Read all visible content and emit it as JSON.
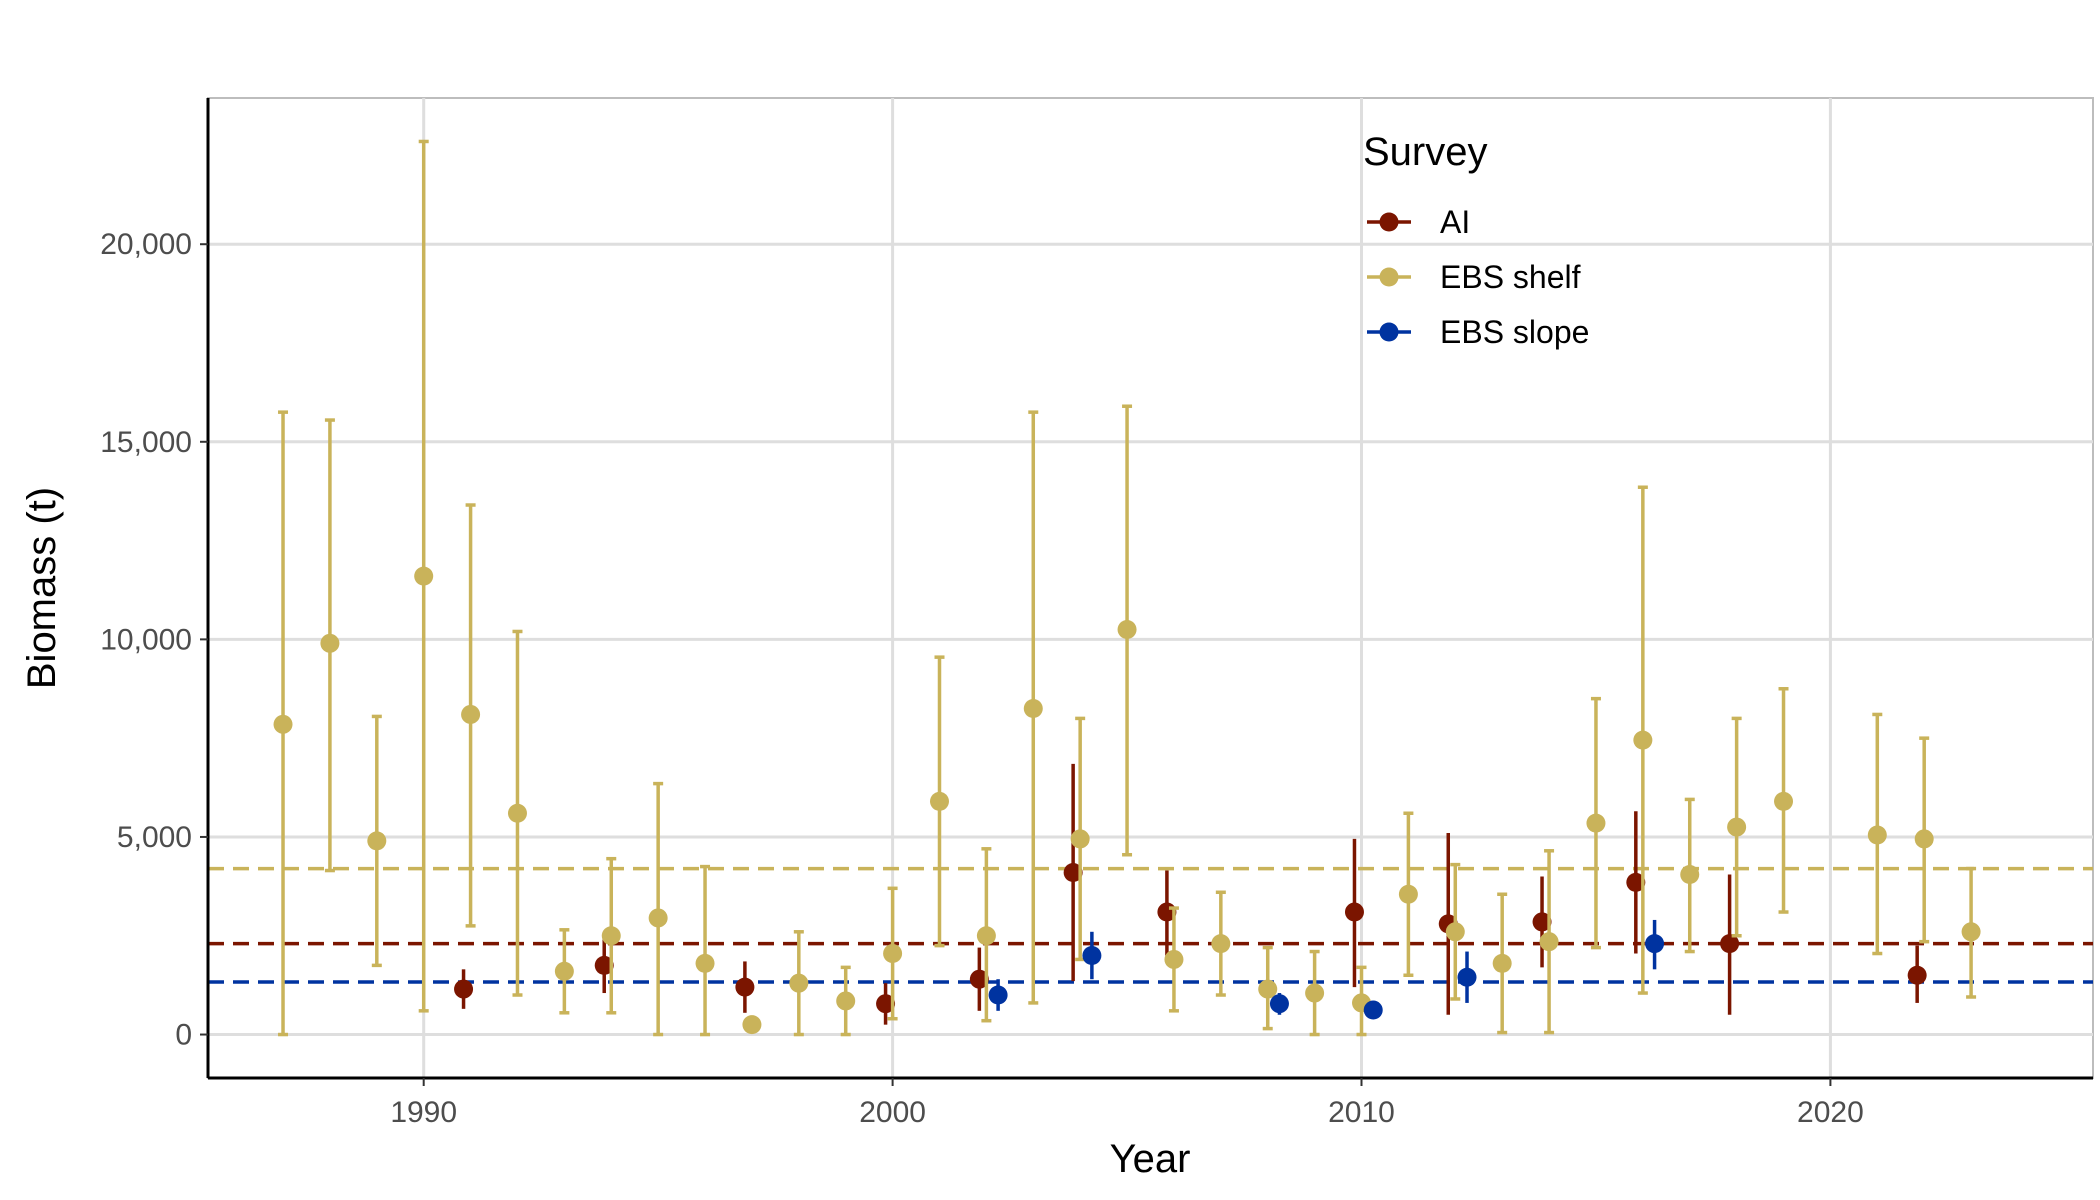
{
  "chart_data": {
    "type": "scatter",
    "title": "",
    "xlabel": "Year",
    "ylabel": "Biomass (t)",
    "xlim": [
      1985.4,
      2025.6
    ],
    "ylim": [
      -1100,
      23700
    ],
    "x_ticks": [
      1990,
      2000,
      2010,
      2020
    ],
    "x_tick_labels": [
      "1990",
      "2000",
      "2010",
      "2020"
    ],
    "y_ticks": [
      0,
      5000,
      10000,
      15000,
      20000
    ],
    "y_tick_labels": [
      "0",
      "5,000",
      "10,000",
      "15,000",
      "20,000"
    ],
    "grid": true,
    "legend": {
      "title": "Survey",
      "position": "top-right"
    },
    "reference_lines": [
      {
        "series": "EBS shelf",
        "y": 4200,
        "style": "dashed"
      },
      {
        "series": "AI",
        "y": 2300,
        "style": "dashed"
      },
      {
        "series": "EBS slope",
        "y": 1330,
        "style": "dashed"
      }
    ],
    "series": [
      {
        "name": "AI",
        "color": "#7B1500",
        "points": [
          {
            "x": 1991,
            "y": 1150,
            "lo": 650,
            "hi": 1650
          },
          {
            "x": 1994,
            "y": 1750,
            "lo": 1050,
            "hi": 2450
          },
          {
            "x": 1997,
            "y": 1200,
            "lo": 550,
            "hi": 1850
          },
          {
            "x": 2000,
            "y": 780,
            "lo": 250,
            "hi": 1300
          },
          {
            "x": 2002,
            "y": 1400,
            "lo": 600,
            "hi": 2200
          },
          {
            "x": 2004,
            "y": 4100,
            "lo": 1350,
            "hi": 6850
          },
          {
            "x": 2006,
            "y": 3100,
            "lo": 2000,
            "hi": 4150
          },
          {
            "x": 2010,
            "y": 3100,
            "lo": 1200,
            "hi": 4950
          },
          {
            "x": 2012,
            "y": 2800,
            "lo": 500,
            "hi": 5100
          },
          {
            "x": 2014,
            "y": 2850,
            "lo": 1700,
            "hi": 4000
          },
          {
            "x": 2016,
            "y": 3850,
            "lo": 2050,
            "hi": 5650
          },
          {
            "x": 2018,
            "y": 2300,
            "lo": 500,
            "hi": 4050
          },
          {
            "x": 2022,
            "y": 1500,
            "lo": 800,
            "hi": 2250
          }
        ]
      },
      {
        "name": "EBS shelf",
        "color": "#C9B35A",
        "points": [
          {
            "x": 1987,
            "y": 7850,
            "lo": 0,
            "hi": 15750
          },
          {
            "x": 1988,
            "y": 9900,
            "lo": 4150,
            "hi": 15550
          },
          {
            "x": 1989,
            "y": 4900,
            "lo": 1750,
            "hi": 8050
          },
          {
            "x": 1990,
            "y": 11600,
            "lo": 600,
            "hi": 22600
          },
          {
            "x": 1991,
            "y": 8100,
            "lo": 2750,
            "hi": 13400
          },
          {
            "x": 1992,
            "y": 5600,
            "lo": 1000,
            "hi": 10200
          },
          {
            "x": 1993,
            "y": 1600,
            "lo": 550,
            "hi": 2650
          },
          {
            "x": 1994,
            "y": 2500,
            "lo": 550,
            "hi": 4450
          },
          {
            "x": 1995,
            "y": 2950,
            "lo": 0,
            "hi": 6350
          },
          {
            "x": 1996,
            "y": 1800,
            "lo": 0,
            "hi": 4250
          },
          {
            "x": 1997,
            "y": 250,
            "lo": 250,
            "hi": 250
          },
          {
            "x": 1998,
            "y": 1300,
            "lo": 0,
            "hi": 2600
          },
          {
            "x": 1999,
            "y": 850,
            "lo": 0,
            "hi": 1700
          },
          {
            "x": 2000,
            "y": 2050,
            "lo": 400,
            "hi": 3700
          },
          {
            "x": 2001,
            "y": 5900,
            "lo": 2250,
            "hi": 9550
          },
          {
            "x": 2002,
            "y": 2500,
            "lo": 350,
            "hi": 4700
          },
          {
            "x": 2003,
            "y": 8250,
            "lo": 800,
            "hi": 15750
          },
          {
            "x": 2004,
            "y": 4950,
            "lo": 1900,
            "hi": 8000
          },
          {
            "x": 2005,
            "y": 10250,
            "lo": 4550,
            "hi": 15900
          },
          {
            "x": 2006,
            "y": 1900,
            "lo": 600,
            "hi": 3200
          },
          {
            "x": 2007,
            "y": 2300,
            "lo": 1000,
            "hi": 3600
          },
          {
            "x": 2008,
            "y": 1150,
            "lo": 150,
            "hi": 2200
          },
          {
            "x": 2009,
            "y": 1050,
            "lo": 0,
            "hi": 2100
          },
          {
            "x": 2010,
            "y": 800,
            "lo": 0,
            "hi": 1700
          },
          {
            "x": 2011,
            "y": 3550,
            "lo": 1500,
            "hi": 5600
          },
          {
            "x": 2012,
            "y": 2600,
            "lo": 900,
            "hi": 4300
          },
          {
            "x": 2013,
            "y": 1800,
            "lo": 50,
            "hi": 3550
          },
          {
            "x": 2014,
            "y": 2350,
            "lo": 50,
            "hi": 4650
          },
          {
            "x": 2015,
            "y": 5350,
            "lo": 2200,
            "hi": 8500
          },
          {
            "x": 2016,
            "y": 7450,
            "lo": 1050,
            "hi": 13850
          },
          {
            "x": 2017,
            "y": 4050,
            "lo": 2100,
            "hi": 5950
          },
          {
            "x": 2018,
            "y": 5250,
            "lo": 2500,
            "hi": 8000
          },
          {
            "x": 2019,
            "y": 5900,
            "lo": 3100,
            "hi": 8750
          },
          {
            "x": 2021,
            "y": 5050,
            "lo": 2050,
            "hi": 8100
          },
          {
            "x": 2022,
            "y": 4950,
            "lo": 2350,
            "hi": 7500
          },
          {
            "x": 2023,
            "y": 2600,
            "lo": 950,
            "hi": 4200
          }
        ]
      },
      {
        "name": "EBS slope",
        "color": "#0033A0",
        "points": [
          {
            "x": 2002,
            "y": 1000,
            "lo": 600,
            "hi": 1400
          },
          {
            "x": 2004,
            "y": 2000,
            "lo": 1400,
            "hi": 2600
          },
          {
            "x": 2008,
            "y": 780,
            "lo": 500,
            "hi": 1050
          },
          {
            "x": 2010,
            "y": 620,
            "lo": 450,
            "hi": 800
          },
          {
            "x": 2012,
            "y": 1450,
            "lo": 800,
            "hi": 2100
          },
          {
            "x": 2016,
            "y": 2300,
            "lo": 1650,
            "hi": 2900
          }
        ]
      }
    ]
  }
}
